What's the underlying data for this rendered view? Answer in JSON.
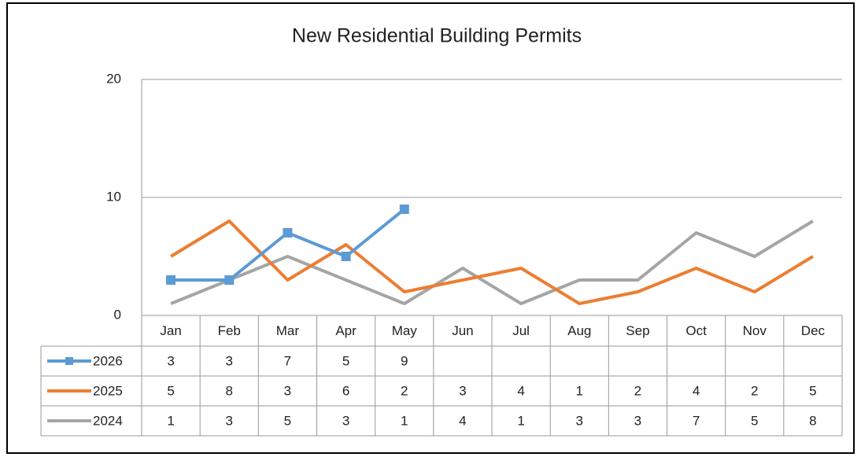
{
  "chart_data": {
    "type": "line",
    "title": "New Residential Building Permits",
    "categories": [
      "Jan",
      "Feb",
      "Mar",
      "Apr",
      "May",
      "Jun",
      "Jul",
      "Aug",
      "Sep",
      "Oct",
      "Nov",
      "Dec"
    ],
    "series": [
      {
        "name": "2026",
        "color": "#5b9bd5",
        "marker": "square",
        "values": [
          3,
          3,
          7,
          5,
          9,
          null,
          null,
          null,
          null,
          null,
          null,
          null
        ]
      },
      {
        "name": "2025",
        "color": "#ed7d31",
        "values": [
          5,
          8,
          3,
          6,
          2,
          3,
          4,
          1,
          2,
          4,
          2,
          5
        ]
      },
      {
        "name": "2024",
        "color": "#a5a5a5",
        "values": [
          1,
          3,
          5,
          3,
          1,
          4,
          1,
          3,
          3,
          7,
          5,
          8
        ]
      }
    ],
    "ylim": [
      0,
      20
    ],
    "yticks": [
      0,
      10,
      20
    ],
    "grid": true,
    "data_table": true
  }
}
